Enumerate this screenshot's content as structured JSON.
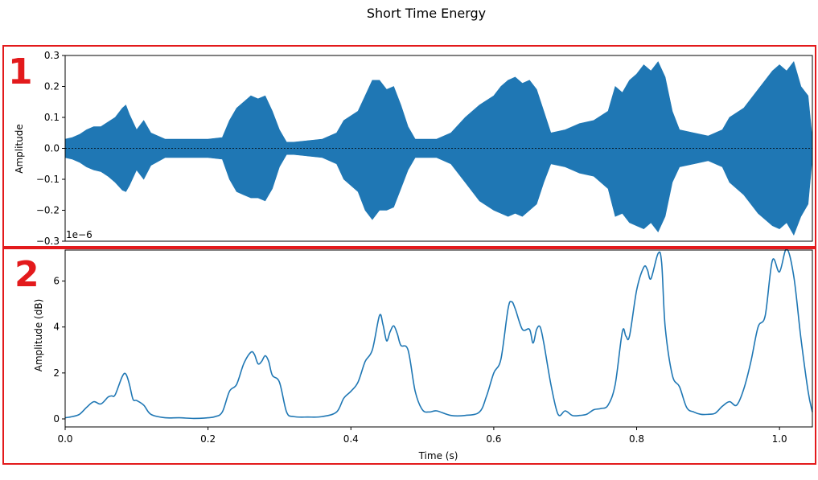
{
  "chart_data": {
    "title": "Short Time Energy",
    "x_label": "Time (s)",
    "x_ticks": [
      "0.0",
      "0.2",
      "0.4",
      "0.6",
      "0.8",
      "1.0"
    ],
    "x_range": [
      0.0,
      1.046
    ],
    "annotation_color": "#e31a1c",
    "series_color": "#1f77b4",
    "panels": [
      {
        "annotation": "1",
        "type": "area",
        "y_label": "Amplitude",
        "y_range": [
          -0.3,
          0.3
        ],
        "y_ticks": [
          "0.3",
          "0.2",
          "0.1",
          "0.0",
          "−0.1",
          "−0.2",
          "−0.3"
        ],
        "zero_line": true,
        "envelope": {
          "x": [
            0.0,
            0.01,
            0.02,
            0.03,
            0.04,
            0.05,
            0.06,
            0.07,
            0.08,
            0.085,
            0.09,
            0.1,
            0.11,
            0.12,
            0.14,
            0.16,
            0.18,
            0.2,
            0.22,
            0.23,
            0.24,
            0.25,
            0.26,
            0.27,
            0.28,
            0.29,
            0.3,
            0.31,
            0.32,
            0.34,
            0.36,
            0.38,
            0.39,
            0.41,
            0.42,
            0.43,
            0.44,
            0.45,
            0.46,
            0.47,
            0.48,
            0.49,
            0.5,
            0.52,
            0.54,
            0.56,
            0.58,
            0.6,
            0.61,
            0.62,
            0.63,
            0.64,
            0.65,
            0.66,
            0.67,
            0.68,
            0.7,
            0.72,
            0.74,
            0.76,
            0.77,
            0.78,
            0.79,
            0.8,
            0.81,
            0.82,
            0.83,
            0.84,
            0.85,
            0.86,
            0.88,
            0.9,
            0.92,
            0.93,
            0.95,
            0.97,
            0.99,
            1.0,
            1.01,
            1.02,
            1.03,
            1.04,
            1.046
          ],
          "upper": [
            0.03,
            0.035,
            0.045,
            0.06,
            0.07,
            0.07,
            0.085,
            0.1,
            0.13,
            0.14,
            0.11,
            0.06,
            0.09,
            0.05,
            0.03,
            0.03,
            0.03,
            0.03,
            0.035,
            0.09,
            0.13,
            0.15,
            0.17,
            0.16,
            0.17,
            0.12,
            0.06,
            0.02,
            0.02,
            0.025,
            0.03,
            0.05,
            0.09,
            0.12,
            0.17,
            0.22,
            0.22,
            0.19,
            0.2,
            0.14,
            0.07,
            0.03,
            0.03,
            0.03,
            0.05,
            0.1,
            0.14,
            0.17,
            0.2,
            0.22,
            0.23,
            0.21,
            0.22,
            0.19,
            0.12,
            0.05,
            0.06,
            0.08,
            0.09,
            0.12,
            0.2,
            0.18,
            0.22,
            0.24,
            0.27,
            0.25,
            0.28,
            0.23,
            0.12,
            0.06,
            0.05,
            0.04,
            0.06,
            0.1,
            0.13,
            0.19,
            0.25,
            0.27,
            0.25,
            0.28,
            0.2,
            0.17,
            0.03
          ],
          "lower": [
            -0.03,
            -0.035,
            -0.045,
            -0.06,
            -0.07,
            -0.075,
            -0.09,
            -0.11,
            -0.135,
            -0.14,
            -0.12,
            -0.07,
            -0.1,
            -0.055,
            -0.03,
            -0.03,
            -0.03,
            -0.03,
            -0.035,
            -0.1,
            -0.14,
            -0.15,
            -0.16,
            -0.16,
            -0.17,
            -0.13,
            -0.06,
            -0.02,
            -0.02,
            -0.025,
            -0.03,
            -0.05,
            -0.1,
            -0.14,
            -0.2,
            -0.23,
            -0.2,
            -0.2,
            -0.19,
            -0.13,
            -0.07,
            -0.03,
            -0.03,
            -0.03,
            -0.05,
            -0.11,
            -0.17,
            -0.2,
            -0.21,
            -0.22,
            -0.21,
            -0.22,
            -0.2,
            -0.18,
            -0.11,
            -0.05,
            -0.06,
            -0.08,
            -0.09,
            -0.13,
            -0.22,
            -0.21,
            -0.24,
            -0.25,
            -0.26,
            -0.24,
            -0.27,
            -0.22,
            -0.11,
            -0.06,
            -0.05,
            -0.04,
            -0.06,
            -0.11,
            -0.15,
            -0.21,
            -0.25,
            -0.26,
            -0.24,
            -0.28,
            -0.22,
            -0.18,
            -0.03
          ]
        }
      },
      {
        "annotation": "2",
        "type": "line",
        "y_label": "Amplitude (dB)",
        "y_range": [
          -0.35,
          7.35
        ],
        "y_multiplier": "1e−6",
        "y_ticks": [
          "0",
          "2",
          "4",
          "6"
        ],
        "series": {
          "x": [
            0.0,
            0.01,
            0.02,
            0.03,
            0.04,
            0.05,
            0.06,
            0.065,
            0.07,
            0.08,
            0.085,
            0.09,
            0.095,
            0.1,
            0.11,
            0.12,
            0.14,
            0.16,
            0.18,
            0.2,
            0.21,
            0.22,
            0.23,
            0.24,
            0.25,
            0.26,
            0.265,
            0.27,
            0.275,
            0.28,
            0.285,
            0.29,
            0.3,
            0.31,
            0.32,
            0.34,
            0.36,
            0.38,
            0.39,
            0.4,
            0.41,
            0.42,
            0.43,
            0.44,
            0.445,
            0.45,
            0.455,
            0.46,
            0.465,
            0.47,
            0.48,
            0.49,
            0.5,
            0.51,
            0.52,
            0.54,
            0.56,
            0.58,
            0.59,
            0.6,
            0.61,
            0.62,
            0.625,
            0.63,
            0.64,
            0.65,
            0.655,
            0.66,
            0.665,
            0.67,
            0.68,
            0.69,
            0.7,
            0.71,
            0.72,
            0.73,
            0.74,
            0.75,
            0.76,
            0.77,
            0.78,
            0.785,
            0.79,
            0.8,
            0.81,
            0.815,
            0.82,
            0.83,
            0.835,
            0.84,
            0.85,
            0.86,
            0.87,
            0.88,
            0.89,
            0.9,
            0.91,
            0.92,
            0.93,
            0.94,
            0.95,
            0.96,
            0.97,
            0.98,
            0.99,
            1.0,
            1.01,
            1.02,
            1.03,
            1.04,
            1.046
          ],
          "y": [
            0.05,
            0.1,
            0.2,
            0.5,
            0.75,
            0.65,
            0.95,
            1.0,
            1.05,
            1.85,
            1.95,
            1.5,
            0.85,
            0.8,
            0.6,
            0.2,
            0.05,
            0.05,
            0.02,
            0.05,
            0.1,
            0.3,
            1.2,
            1.5,
            2.4,
            2.9,
            2.8,
            2.4,
            2.5,
            2.75,
            2.5,
            1.9,
            1.6,
            0.3,
            0.1,
            0.08,
            0.1,
            0.3,
            0.9,
            1.2,
            1.6,
            2.5,
            3.0,
            4.5,
            4.1,
            3.4,
            3.8,
            4.05,
            3.7,
            3.2,
            3.0,
            1.2,
            0.4,
            0.3,
            0.35,
            0.15,
            0.15,
            0.3,
            1.0,
            2.0,
            2.6,
            4.8,
            5.1,
            4.8,
            3.9,
            3.9,
            3.3,
            3.9,
            4.0,
            3.3,
            1.5,
            0.2,
            0.35,
            0.15,
            0.15,
            0.2,
            0.4,
            0.45,
            0.6,
            1.5,
            3.8,
            3.6,
            3.6,
            5.6,
            6.6,
            6.5,
            6.1,
            7.2,
            6.8,
            4.0,
            1.9,
            1.4,
            0.5,
            0.3,
            0.2,
            0.2,
            0.25,
            0.55,
            0.75,
            0.6,
            1.3,
            2.5,
            4.0,
            4.5,
            6.9,
            6.4,
            7.4,
            6.2,
            3.5,
            1.2,
            0.3
          ]
        }
      }
    ]
  }
}
